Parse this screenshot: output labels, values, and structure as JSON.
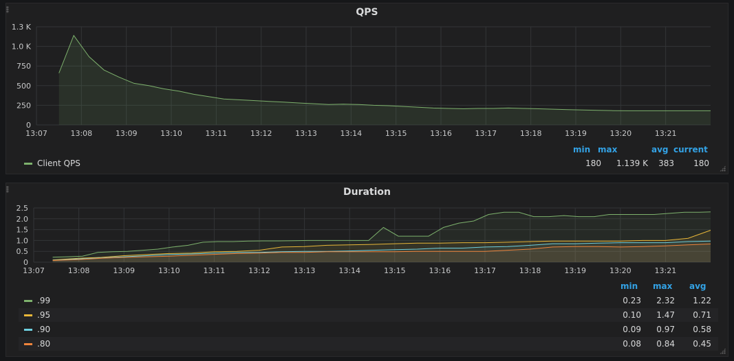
{
  "panels": [
    {
      "title": "QPS",
      "legend_columns": [
        "min",
        "max",
        "avg",
        "current"
      ],
      "legend": [
        {
          "name": "Client QPS",
          "color": "#7eb26d",
          "values": [
            "180",
            "1.139 K",
            "383",
            "180"
          ]
        }
      ]
    },
    {
      "title": "Duration",
      "legend_columns": [
        "min",
        "max",
        "avg"
      ],
      "legend": [
        {
          "name": ".99",
          "color": "#7eb26d",
          "values": [
            "0.23",
            "2.32",
            "1.22"
          ]
        },
        {
          "name": ".95",
          "color": "#eab839",
          "values": [
            "0.10",
            "1.47",
            "0.71"
          ]
        },
        {
          "name": ".90",
          "color": "#6ed0e0",
          "values": [
            "0.09",
            "0.97",
            "0.58"
          ]
        },
        {
          "name": ".80",
          "color": "#ef843c",
          "values": [
            "0.08",
            "0.84",
            "0.45"
          ]
        }
      ]
    }
  ],
  "chart_data": [
    {
      "type": "area",
      "title": "QPS",
      "x_ticks": [
        "13:07",
        "13:08",
        "13:09",
        "13:10",
        "13:11",
        "13:12",
        "13:13",
        "13:14",
        "13:15",
        "13:16",
        "13:17",
        "13:18",
        "13:19",
        "13:20",
        "13:21"
      ],
      "y_ticks": [
        "0",
        "250",
        "500",
        "750",
        "1.0 K",
        "1.3 K"
      ],
      "y_tick_values": [
        0,
        250,
        500,
        750,
        1000,
        1250
      ],
      "xlim": [
        0,
        15
      ],
      "ylim": [
        0,
        1250
      ],
      "grid": true,
      "series": [
        {
          "name": "Client QPS",
          "color": "#7eb26d",
          "x": [
            0.5,
            0.5,
            0.83,
            1.17,
            1.5,
            1.83,
            2.17,
            2.5,
            2.83,
            3.17,
            3.5,
            3.83,
            4.17,
            4.5,
            4.83,
            5.17,
            5.5,
            5.83,
            6.17,
            6.5,
            6.83,
            7.17,
            7.5,
            7.83,
            8.17,
            8.5,
            8.83,
            9.17,
            9.5,
            9.83,
            10.17,
            10.5,
            10.83,
            11.17,
            11.5,
            11.83,
            12.17,
            12.5,
            12.83,
            13.17,
            13.5,
            13.83,
            14.17,
            14.5,
            14.83,
            15
          ],
          "y": [
            660,
            660,
            1139,
            870,
            700,
            610,
            530,
            500,
            460,
            430,
            390,
            360,
            330,
            320,
            310,
            300,
            290,
            280,
            270,
            260,
            265,
            260,
            250,
            245,
            235,
            225,
            215,
            210,
            205,
            210,
            210,
            215,
            210,
            205,
            200,
            195,
            190,
            185,
            182,
            180,
            180,
            180,
            180,
            180,
            180,
            180
          ]
        }
      ]
    },
    {
      "type": "line",
      "title": "Duration",
      "x_ticks": [
        "13:07",
        "13:08",
        "13:09",
        "13:10",
        "13:11",
        "13:12",
        "13:13",
        "13:14",
        "13:15",
        "13:16",
        "13:17",
        "13:18",
        "13:19",
        "13:20",
        "13:21"
      ],
      "y_ticks": [
        "0",
        "0.5",
        "1.0",
        "1.5",
        "2.0",
        "2.5"
      ],
      "y_tick_values": [
        0,
        0.5,
        1.0,
        1.5,
        2.0,
        2.5
      ],
      "xlim": [
        0,
        15
      ],
      "ylim": [
        0,
        2.5
      ],
      "grid": true,
      "series": [
        {
          "name": ".99",
          "color": "#7eb26d",
          "x": [
            0.42,
            0.75,
            1.08,
            1.42,
            1.75,
            2.08,
            2.42,
            2.75,
            3.08,
            3.42,
            3.75,
            4.08,
            4.42,
            4.75,
            5.08,
            5.42,
            5.75,
            6.08,
            6.42,
            6.75,
            7.08,
            7.42,
            7.75,
            8.08,
            8.42,
            8.75,
            9.08,
            9.42,
            9.75,
            10.08,
            10.42,
            10.75,
            11.08,
            11.42,
            11.75,
            12.08,
            12.42,
            12.75,
            13.08,
            13.42,
            13.75,
            14.08,
            14.42,
            14.75,
            15
          ],
          "y": [
            0.23,
            0.25,
            0.28,
            0.45,
            0.48,
            0.5,
            0.55,
            0.6,
            0.7,
            0.78,
            0.92,
            0.95,
            0.95,
            0.97,
            0.98,
            0.98,
            0.99,
            1.0,
            1.0,
            1.0,
            1.0,
            1.0,
            1.6,
            1.2,
            1.2,
            1.2,
            1.6,
            1.8,
            1.9,
            2.2,
            2.3,
            2.3,
            2.1,
            2.1,
            2.15,
            2.1,
            2.1,
            2.2,
            2.2,
            2.2,
            2.2,
            2.25,
            2.3,
            2.3,
            2.32
          ]
        },
        {
          "name": ".95",
          "color": "#eab839",
          "x": [
            0.42,
            1.0,
            1.5,
            2.0,
            2.5,
            3.0,
            3.5,
            4.0,
            4.5,
            5.0,
            5.5,
            6.0,
            6.5,
            7.0,
            7.5,
            8.0,
            8.5,
            9.0,
            9.5,
            10.0,
            10.5,
            11.0,
            11.5,
            12.0,
            12.5,
            13.0,
            13.5,
            14.0,
            14.5,
            15
          ],
          "y": [
            0.1,
            0.18,
            0.22,
            0.3,
            0.35,
            0.4,
            0.42,
            0.48,
            0.5,
            0.55,
            0.7,
            0.72,
            0.78,
            0.8,
            0.82,
            0.85,
            0.88,
            0.88,
            0.9,
            0.9,
            0.92,
            0.95,
            0.97,
            0.97,
            0.97,
            0.97,
            1.0,
            1.0,
            1.1,
            1.47
          ]
        },
        {
          "name": ".90",
          "color": "#6ed0e0",
          "x": [
            0.42,
            1.0,
            1.5,
            2.0,
            2.5,
            3.0,
            3.5,
            4.0,
            4.5,
            5.0,
            5.5,
            6.0,
            6.5,
            7.0,
            7.5,
            8.0,
            8.5,
            9.0,
            9.5,
            10.0,
            10.5,
            11.0,
            11.5,
            12.0,
            12.5,
            13.0,
            13.5,
            14.0,
            14.5,
            15
          ],
          "y": [
            0.09,
            0.15,
            0.2,
            0.25,
            0.3,
            0.35,
            0.38,
            0.42,
            0.45,
            0.45,
            0.48,
            0.5,
            0.5,
            0.52,
            0.55,
            0.58,
            0.6,
            0.65,
            0.65,
            0.7,
            0.72,
            0.78,
            0.85,
            0.85,
            0.88,
            0.9,
            0.9,
            0.9,
            0.95,
            0.97
          ]
        },
        {
          "name": ".80",
          "color": "#ef843c",
          "x": [
            0.42,
            1.0,
            1.5,
            2.0,
            2.5,
            3.0,
            3.5,
            4.0,
            4.5,
            5.0,
            5.5,
            6.0,
            6.5,
            7.0,
            7.5,
            8.0,
            8.5,
            9.0,
            9.5,
            10.0,
            10.5,
            11.0,
            11.5,
            12.0,
            12.5,
            13.0,
            13.5,
            14.0,
            14.5,
            15
          ],
          "y": [
            0.08,
            0.12,
            0.18,
            0.22,
            0.25,
            0.28,
            0.32,
            0.36,
            0.4,
            0.42,
            0.45,
            0.45,
            0.48,
            0.48,
            0.48,
            0.48,
            0.5,
            0.5,
            0.5,
            0.5,
            0.55,
            0.6,
            0.7,
            0.72,
            0.72,
            0.7,
            0.72,
            0.75,
            0.8,
            0.84
          ]
        }
      ]
    }
  ]
}
